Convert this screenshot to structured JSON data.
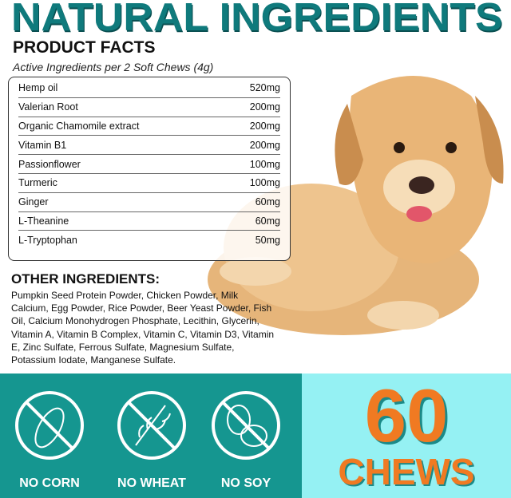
{
  "title": "NATURAL INGREDIENTS",
  "product_facts": "PRODUCT FACTS",
  "subtitle": "Active Ingredients per 2 Soft Chews (4g)",
  "ingredients": [
    {
      "name": "Hemp oil",
      "amount": "520mg"
    },
    {
      "name": "Valerian Root",
      "amount": "200mg"
    },
    {
      "name": "Organic Chamomile extract",
      "amount": "200mg"
    },
    {
      "name": "Vitamin B1",
      "amount": "200mg"
    },
    {
      "name": "Passionflower",
      "amount": "100mg"
    },
    {
      "name": "Turmeric",
      "amount": "100mg"
    },
    {
      "name": "Ginger",
      "amount": "60mg"
    },
    {
      "name": "L-Theanine",
      "amount": "60mg"
    },
    {
      "name": "L-Tryptophan",
      "amount": "50mg"
    }
  ],
  "other_heading": "OTHER INGREDIENTS:",
  "other_text": "Pumpkin Seed Protein Powder, Chicken Powder, Milk Calcium, Egg Powder, Rice Powder, Beer Yeast Powder, Fish Oil, Calcium Monohydrogen Phosphate, Lecithin, Glycerin, Vitamin A, Vitamin B Complex, Vitamin C, Vitamin D3, Vitamin E, Zinc Sulfate, Ferrous Sulfate, Magnesium Sulfate, Potassium Iodate, Manganese Sulfate.",
  "badges": [
    {
      "label": "NO CORN",
      "icon": "no-corn-icon"
    },
    {
      "label": "NO WHEAT",
      "icon": "no-wheat-icon"
    },
    {
      "label": "NO SOY",
      "icon": "no-soy-icon"
    }
  ],
  "count": "60",
  "count_unit": "CHEWS",
  "colors": {
    "title": "#0f7a7c",
    "band": "#159690",
    "chews_bg": "#95f1f3",
    "chews_text": "#f07a22"
  }
}
